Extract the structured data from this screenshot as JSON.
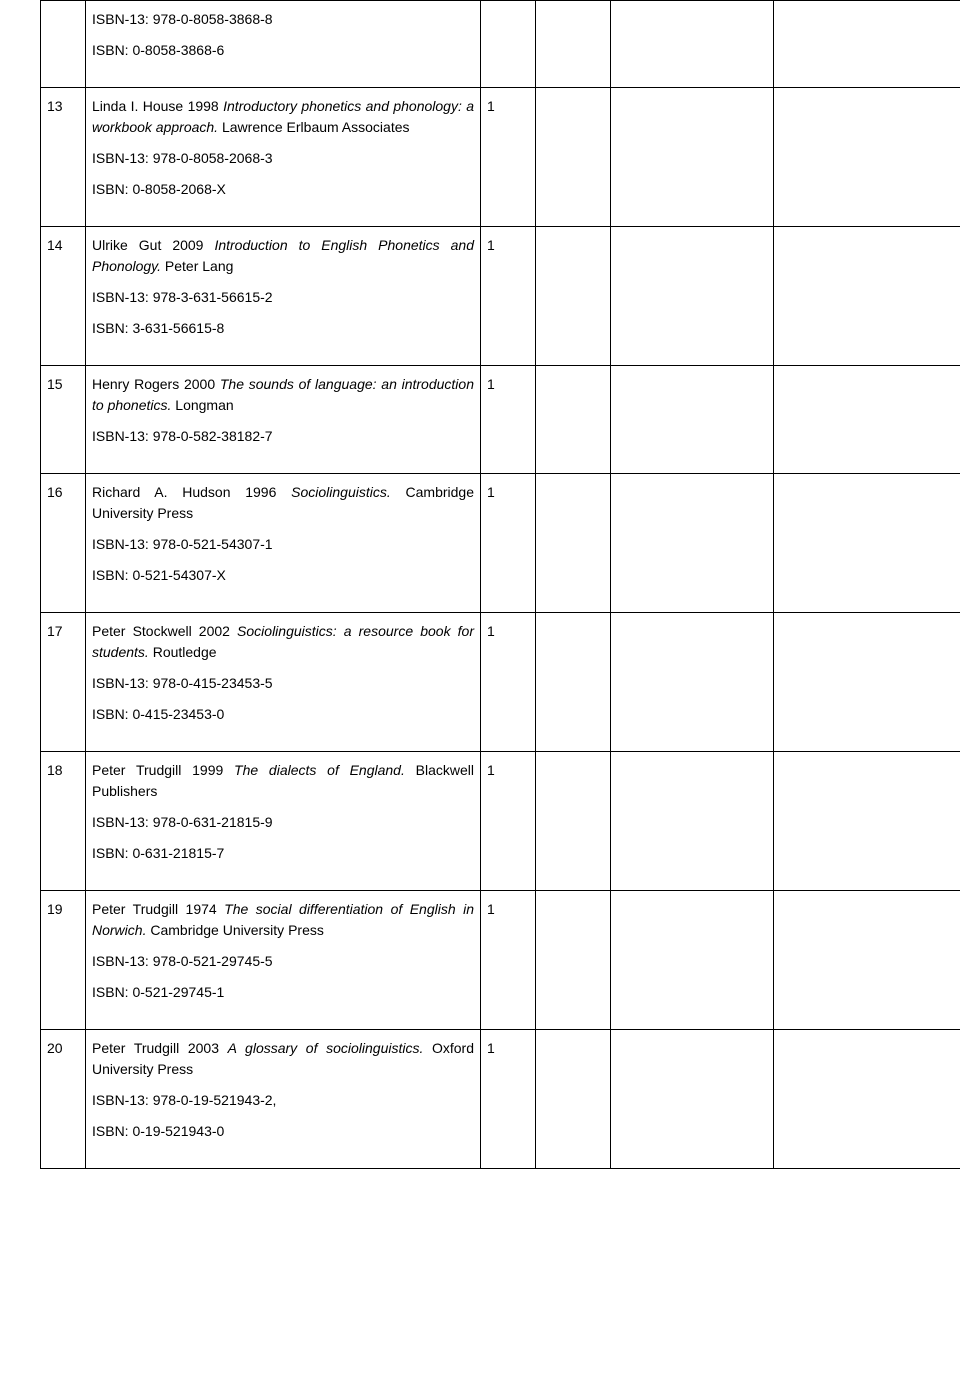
{
  "table": {
    "columns": {
      "num_width": 32,
      "desc_width": 382,
      "qty_width": 42,
      "c4_width": 62,
      "c5_width": 150,
      "c6_width": 205
    },
    "border_color": "#000000",
    "text_color": "#000000",
    "background_color": "#ffffff",
    "font_size": 14,
    "rows": [
      {
        "num": "",
        "pre_text": "",
        "italic_text": "",
        "post_text": "",
        "isbn13": "ISBN-13: 978-0-8058-3868-8",
        "isbn": "ISBN: 0-8058-3868-6",
        "qty": ""
      },
      {
        "num": "13",
        "pre_text": "Linda I. House 1998 ",
        "italic_text": "Introductory phonetics and phonology: a workbook approach.",
        "post_text": " Lawrence Erlbaum Associates",
        "isbn13": "ISBN-13: 978-0-8058-2068-3",
        "isbn": "ISBN: 0-8058-2068-X",
        "qty": "1"
      },
      {
        "num": "14",
        "pre_text": "Ulrike Gut 2009 ",
        "italic_text": "Introduction to English Phonetics and Phonology.",
        "post_text": " Peter Lang",
        "isbn13": "ISBN-13: 978-3-631-56615-2",
        "isbn": "ISBN: 3-631-56615-8",
        "qty": "1"
      },
      {
        "num": "15",
        "pre_text": "Henry Rogers 2000 ",
        "italic_text": "The sounds of language: an introduction to phonetics.",
        "post_text": " Longman",
        "isbn13": "ISBN-13: 978-0-582-38182-7",
        "isbn": "",
        "qty": "1"
      },
      {
        "num": "16",
        "pre_text": "Richard A. Hudson 1996 ",
        "italic_text": "Sociolinguistics.",
        "post_text": " Cambridge University Press",
        "isbn13": "ISBN-13: 978-0-521-54307-1",
        "isbn": " ISBN: 0-521-54307-X",
        "qty": "1"
      },
      {
        "num": "17",
        "pre_text": "Peter Stockwell 2002 ",
        "italic_text": "Sociolinguistics: a resource book for students.",
        "post_text": " Routledge",
        "isbn13": "ISBN-13: 978-0-415-23453-5",
        "isbn": "ISBN: 0-415-23453-0",
        "qty": "1"
      },
      {
        "num": "18",
        "pre_text": "Peter Trudgill 1999 ",
        "italic_text": "The dialects of England.",
        "post_text": " Blackwell Publishers",
        "isbn13": "ISBN-13: 978-0-631-21815-9",
        "isbn": "ISBN: 0-631-21815-7",
        "qty": "1"
      },
      {
        "num": "19",
        "pre_text": "Peter Trudgill 1974 ",
        "italic_text": "The social differentiation of English in Norwich.",
        "post_text": " Cambridge University Press",
        "isbn13": "ISBN-13: 978-0-521-29745-5",
        "isbn": "ISBN: 0-521-29745-1",
        "qty": "1"
      },
      {
        "num": "20",
        "pre_text": "Peter Trudgill 2003 ",
        "italic_text": "A glossary of sociolinguistics.",
        "post_text": " Oxford University Press",
        "isbn13": "ISBN-13: 978-0-19-521943-2,",
        "isbn": "ISBN: 0-19-521943-0",
        "qty": "1"
      }
    ]
  }
}
